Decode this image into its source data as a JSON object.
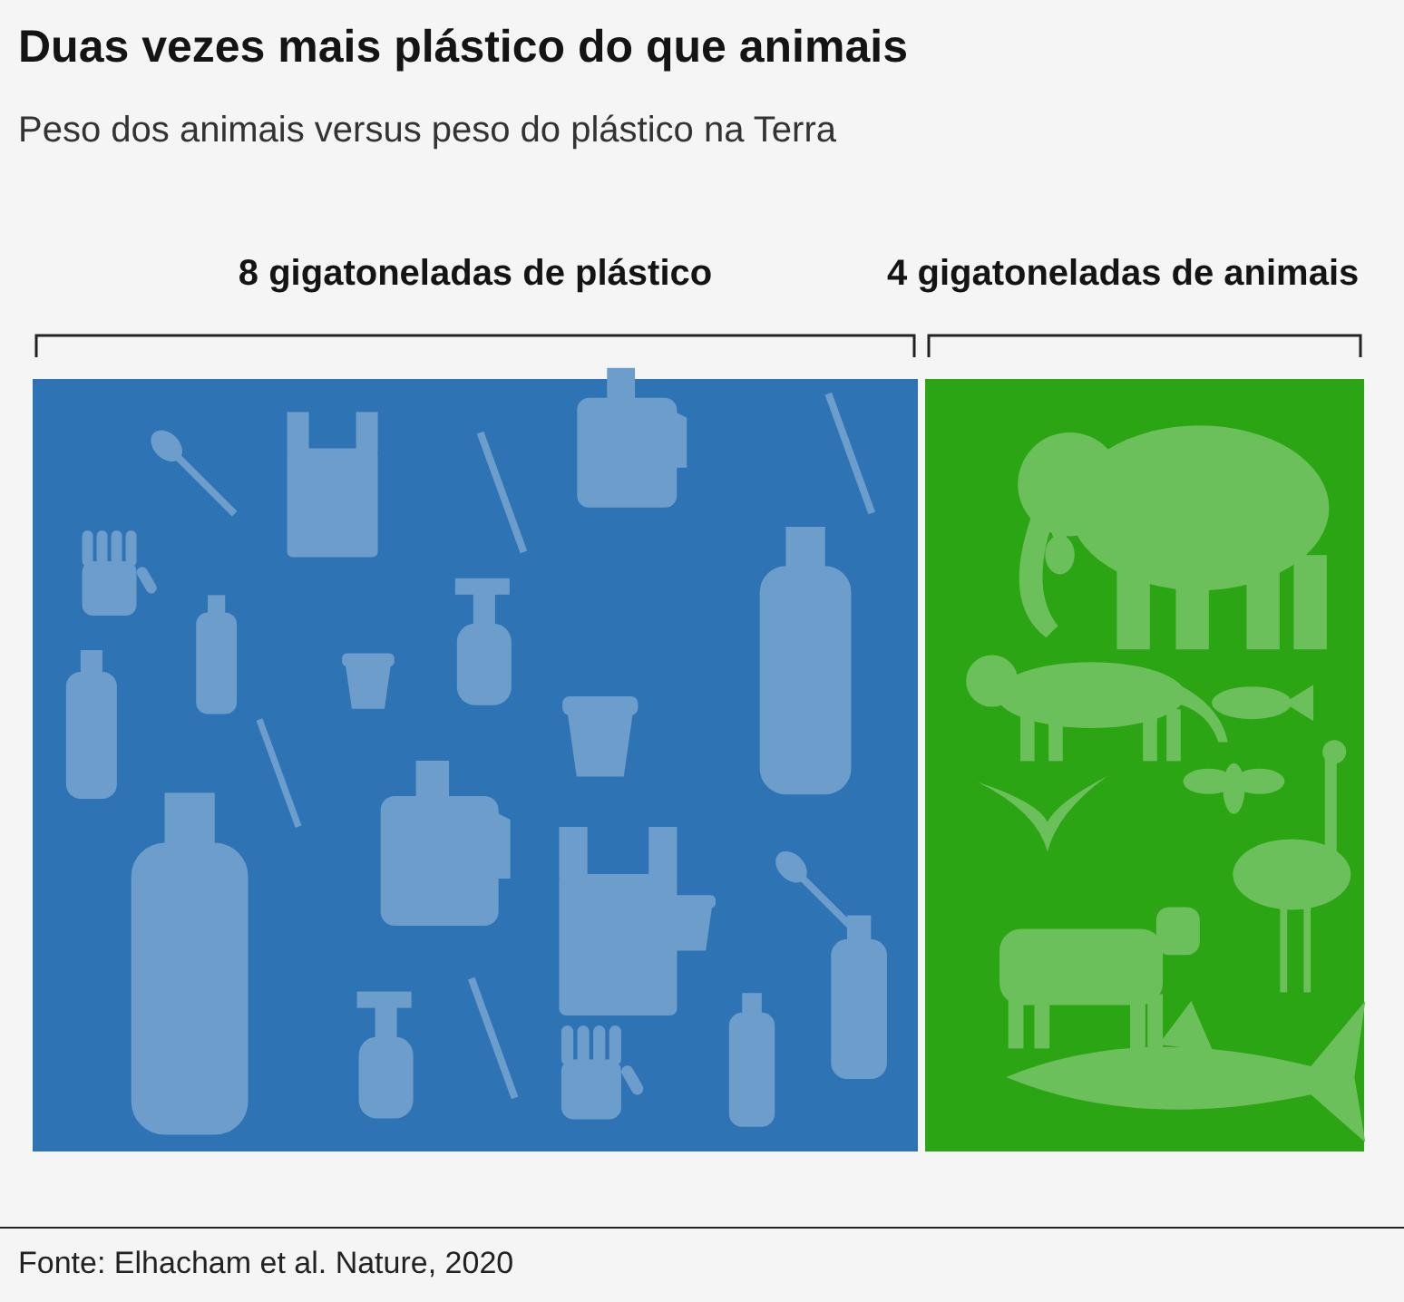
{
  "chart_data": {
    "type": "other",
    "title": "Duas vezes mais plástico do que animais",
    "subtitle": "Peso dos animais versus peso do plástico na Terra",
    "values": [
      8,
      4
    ],
    "value_labels": [
      "8 gigatoneladas de plástico",
      "4 gigatoneladas de animais"
    ],
    "colors": [
      "#2e74b5",
      "#2ba514"
    ],
    "annotations": [
      "Fonte: Elhacham et al. Nature, 2020"
    ]
  }
}
